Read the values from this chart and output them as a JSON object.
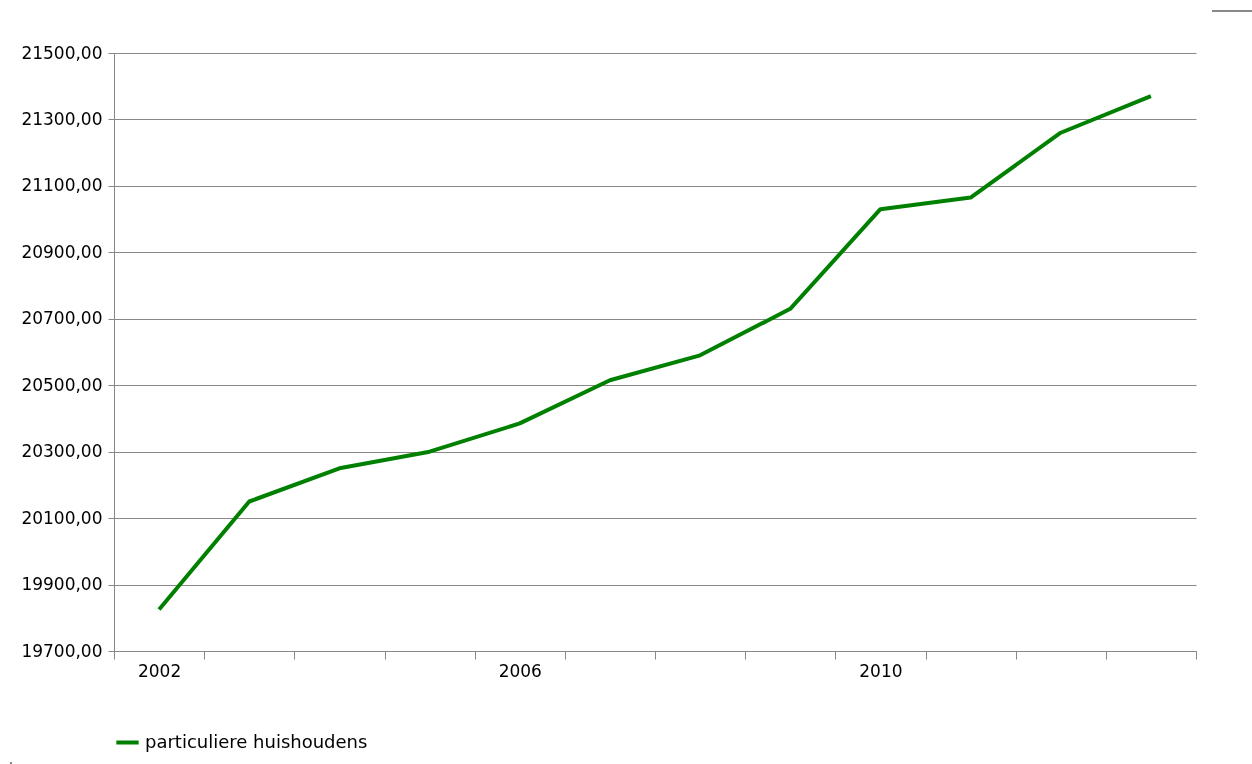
{
  "chart_data": {
    "type": "line",
    "categories": [
      "2002",
      null,
      null,
      null,
      "2006",
      null,
      null,
      null,
      "2010",
      null,
      null,
      null
    ],
    "series": [
      {
        "name": "particuliere huishoudens",
        "color": "#008000",
        "values": [
          19825,
          20150,
          20250,
          20300,
          20385,
          20515,
          20590,
          20730,
          21030,
          21065,
          21260,
          21370
        ]
      }
    ],
    "ylim": [
      19700,
      21500
    ],
    "yticks": [
      {
        "value": 19700,
        "label": "19700,00"
      },
      {
        "value": 19900,
        "label": "19900,00"
      },
      {
        "value": 20100,
        "label": "20100,00"
      },
      {
        "value": 20300,
        "label": "20300,00"
      },
      {
        "value": 20500,
        "label": "20500,00"
      },
      {
        "value": 20700,
        "label": "20700,00"
      },
      {
        "value": 20900,
        "label": "20900,00"
      },
      {
        "value": 21100,
        "label": "21100,00"
      },
      {
        "value": 21300,
        "label": "21300,00"
      },
      {
        "value": 21500,
        "label": "21500,00"
      }
    ],
    "grid": "y",
    "legend": "bottom",
    "marker": "none",
    "line_style": "solid"
  }
}
